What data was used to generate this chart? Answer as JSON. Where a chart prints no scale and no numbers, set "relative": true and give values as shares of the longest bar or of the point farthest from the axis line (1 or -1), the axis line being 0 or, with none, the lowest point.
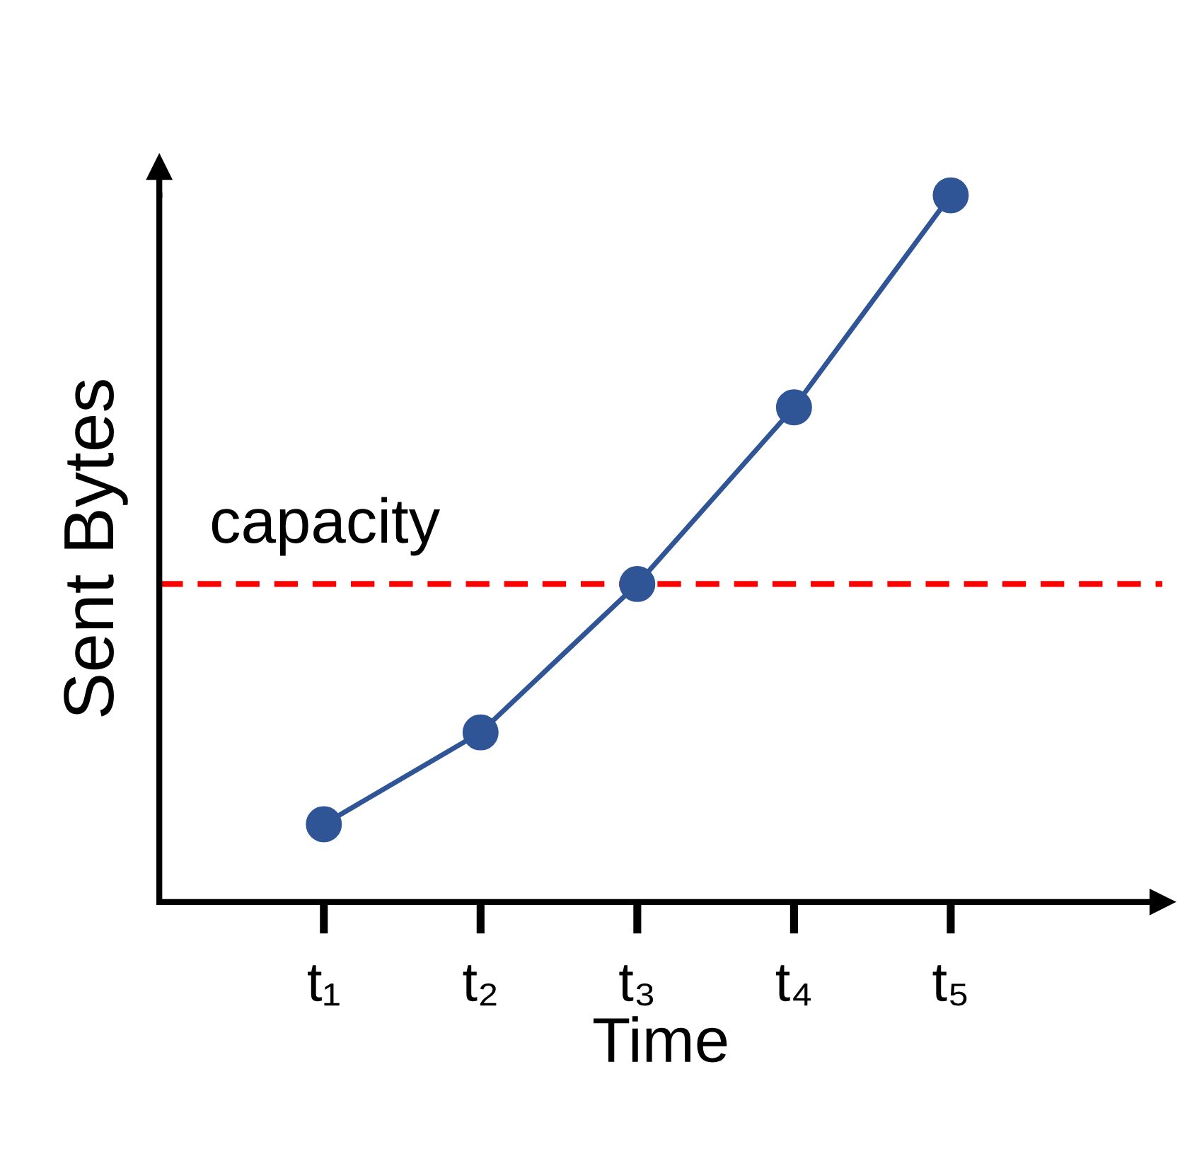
{
  "chart_data": {
    "type": "line",
    "relative": true,
    "xlabel": "Time",
    "ylabel": "Sent Bytes",
    "categories": [
      "t₁",
      "t₂",
      "t₃",
      "t₄",
      "t₅"
    ],
    "series": [
      {
        "color": "#2f5597",
        "values": [
          0.11,
          0.24,
          0.45,
          0.7,
          1.0
        ]
      }
    ],
    "ref_lines": [
      {
        "axis": "y",
        "value": 0.45,
        "label": "capacity",
        "color": "#ff0000",
        "line_style": "dashed"
      }
    ],
    "marker": "circle",
    "line_style": "solid",
    "grid": false,
    "legend": false
  }
}
